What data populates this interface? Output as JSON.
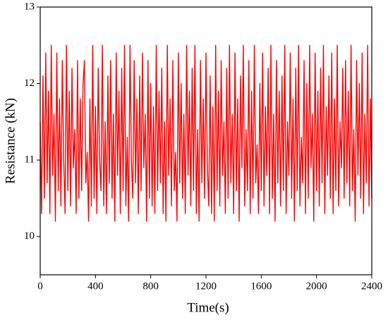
{
  "chart_data": {
    "type": "line",
    "xlabel": "Time(s)",
    "ylabel": "Resistance (kN)",
    "xlim": [
      0,
      2400
    ],
    "xticks": [
      0,
      400,
      800,
      1200,
      1600,
      2000,
      2400
    ],
    "ylim": [
      9.5,
      13
    ],
    "yticks": [
      10,
      11,
      12,
      13
    ],
    "grid": false,
    "series": [
      {
        "color": "#ff0000",
        "x": [
          0,
          10,
          20,
          30,
          40,
          50,
          60,
          70,
          80,
          90,
          100,
          110,
          120,
          130,
          140,
          150,
          160,
          170,
          180,
          190,
          200,
          210,
          220,
          230,
          240,
          250,
          260,
          270,
          280,
          290,
          300,
          310,
          320,
          330,
          340,
          350,
          360,
          370,
          380,
          390,
          400,
          410,
          420,
          430,
          440,
          450,
          460,
          470,
          480,
          490,
          500,
          510,
          520,
          530,
          540,
          550,
          560,
          570,
          580,
          590,
          600,
          610,
          620,
          630,
          640,
          650,
          660,
          670,
          680,
          690,
          700,
          710,
          720,
          730,
          740,
          750,
          760,
          770,
          780,
          790,
          800,
          810,
          820,
          830,
          840,
          850,
          860,
          870,
          880,
          890,
          900,
          910,
          920,
          930,
          940,
          950,
          960,
          970,
          980,
          990,
          1000,
          1010,
          1020,
          1030,
          1040,
          1050,
          1060,
          1070,
          1080,
          1090,
          1100,
          1110,
          1120,
          1130,
          1140,
          1150,
          1160,
          1170,
          1180,
          1190,
          1200,
          1210,
          1220,
          1230,
          1240,
          1250,
          1260,
          1270,
          1280,
          1290,
          1300,
          1310,
          1320,
          1330,
          1340,
          1350,
          1360,
          1370,
          1380,
          1390,
          1400,
          1410,
          1420,
          1430,
          1440,
          1450,
          1460,
          1470,
          1480,
          1490,
          1500,
          1510,
          1520,
          1530,
          1540,
          1550,
          1560,
          1570,
          1580,
          1590,
          1600,
          1610,
          1620,
          1630,
          1640,
          1650,
          1660,
          1670,
          1680,
          1690,
          1700,
          1710,
          1720,
          1730,
          1740,
          1750,
          1760,
          1770,
          1780,
          1790,
          1800,
          1810,
          1820,
          1830,
          1840,
          1850,
          1860,
          1870,
          1880,
          1890,
          1900,
          1910,
          1920,
          1930,
          1940,
          1950,
          1960,
          1970,
          1980,
          1990,
          2000,
          2010,
          2020,
          2030,
          2040,
          2050,
          2060,
          2070,
          2080,
          2090,
          2100,
          2110,
          2120,
          2130,
          2140,
          2150,
          2160,
          2170,
          2180,
          2190,
          2200,
          2210,
          2220,
          2230,
          2240,
          2250,
          2260,
          2270,
          2280,
          2290,
          2300,
          2310,
          2320,
          2330,
          2340,
          2350,
          2360,
          2370,
          2380,
          2390,
          2400
        ],
        "values": [
          11.5,
          10.3,
          12.1,
          10.5,
          12.4,
          10.7,
          11.9,
          10.3,
          12.5,
          10.8,
          11.6,
          10.2,
          12.4,
          10.6,
          11.8,
          10.4,
          12.3,
          11.0,
          10.3,
          12.5,
          10.6,
          11.9,
          10.4,
          12.2,
          10.9,
          11.4,
          10.3,
          12.3,
          10.5,
          11.8,
          10.6,
          12.0,
          12.3,
          10.7,
          11.1,
          10.2,
          11.8,
          10.4,
          12.5,
          10.5,
          11.7,
          10.3,
          12.2,
          11.0,
          10.6,
          12.5,
          10.4,
          11.5,
          10.3,
          12.1,
          10.7,
          12.3,
          10.5,
          11.6,
          10.2,
          12.4,
          10.8,
          11.9,
          10.3,
          12.2,
          10.6,
          12.5,
          10.4,
          11.3,
          10.2,
          12.5,
          11.0,
          10.5,
          12.3,
          10.7,
          11.8,
          10.3,
          12.1,
          10.6,
          12.4,
          10.9,
          11.6,
          10.2,
          12.3,
          10.5,
          12.0,
          10.4,
          11.7,
          10.3,
          12.5,
          10.6,
          11.9,
          10.7,
          12.2,
          10.3,
          11.5,
          10.2,
          12.5,
          10.8,
          11.8,
          10.4,
          12.3,
          10.6,
          11.1,
          10.2,
          12.4,
          10.7,
          12.0,
          10.5,
          11.6,
          10.3,
          12.5,
          10.8,
          11.9,
          10.4,
          12.2,
          10.6,
          12.5,
          10.3,
          11.4,
          10.2,
          12.3,
          10.7,
          11.8,
          10.5,
          12.4,
          10.9,
          10.4,
          12.1,
          10.3,
          11.7,
          10.2,
          12.5,
          10.6,
          11.9,
          10.4,
          12.3,
          10.8,
          11.5,
          10.3,
          12.2,
          10.5,
          12.5,
          10.7,
          11.6,
          10.3,
          12.4,
          10.6,
          11.8,
          10.2,
          12.1,
          10.9,
          12.5,
          10.4,
          11.4,
          10.6,
          12.3,
          10.3,
          11.9,
          10.5,
          12.5,
          10.7,
          11.2,
          10.3,
          12.0,
          10.6,
          12.4,
          10.4,
          11.7,
          10.8,
          12.2,
          10.3,
          12.5,
          10.5,
          11.6,
          10.2,
          12.3,
          10.7,
          11.9,
          10.4,
          12.1,
          10.6,
          12.5,
          10.3,
          11.5,
          10.8,
          12.4,
          10.5,
          11.8,
          10.2,
          12.2,
          10.6,
          12.5,
          10.4,
          11.3,
          10.7,
          12.3,
          10.3,
          12.0,
          10.5,
          12.5,
          10.9,
          11.6,
          10.2,
          12.4,
          10.6,
          11.9,
          10.4,
          12.2,
          10.7,
          12.5,
          10.3,
          11.7,
          10.8,
          12.1,
          10.5,
          12.4,
          10.3,
          11.8,
          10.6,
          12.5,
          10.4,
          11.5,
          10.9,
          12.2,
          10.5,
          12.3,
          10.7,
          11.9,
          10.4,
          12.5,
          10.6,
          11.4,
          10.2,
          12.3,
          10.8,
          12.0,
          10.5,
          12.4,
          10.3,
          11.6,
          10.7,
          12.5,
          10.4,
          11.8,
          10.5
        ]
      }
    ]
  }
}
